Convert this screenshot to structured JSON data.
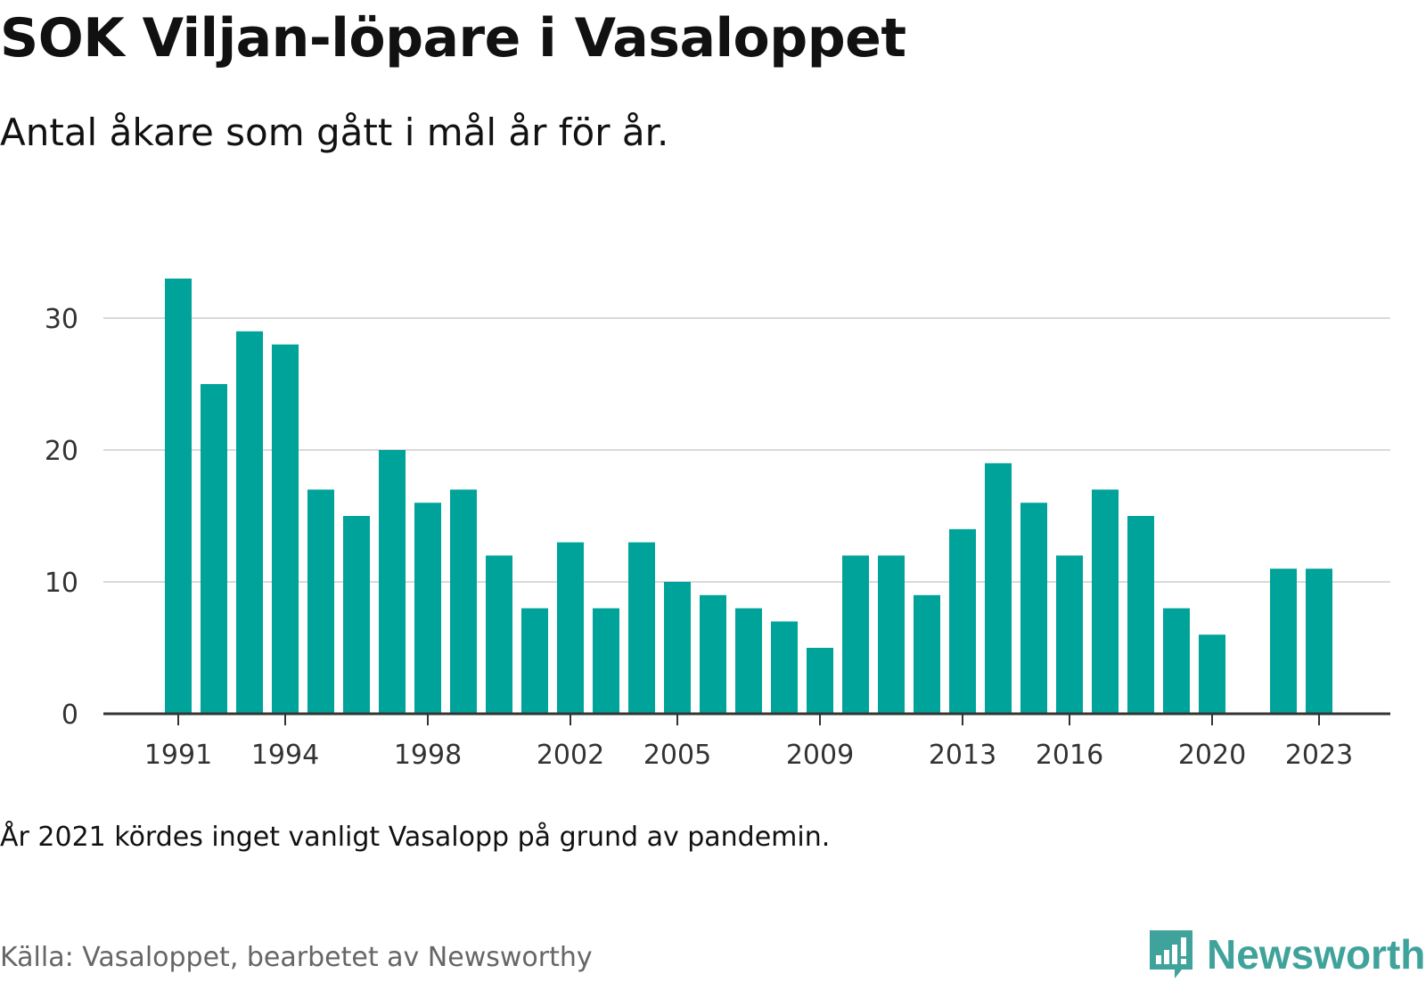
{
  "header": {
    "title": "SOK Viljan-löpare i Vasaloppet",
    "subtitle": "Antal åkare som gått i mål år för år."
  },
  "footer": {
    "note": "År 2021 kördes inget vanligt Vasalopp på grund av pandemin.",
    "source": "Källa: Vasaloppet, bearbetet av Newsworthy",
    "logo_text": "Newsworthy"
  },
  "colors": {
    "bar": "#00a39a",
    "grid": "#d9d9d9",
    "axis": "#333333",
    "brand": "#3fa39b"
  },
  "chart_data": {
    "type": "bar",
    "categories": [
      1991,
      1992,
      1993,
      1994,
      1995,
      1996,
      1997,
      1998,
      1999,
      2000,
      2001,
      2002,
      2003,
      2004,
      2005,
      2006,
      2007,
      2008,
      2009,
      2010,
      2011,
      2012,
      2013,
      2014,
      2015,
      2016,
      2017,
      2018,
      2019,
      2020,
      2021,
      2022,
      2023
    ],
    "values": [
      33,
      25,
      29,
      28,
      17,
      15,
      20,
      16,
      17,
      12,
      8,
      13,
      8,
      13,
      10,
      9,
      8,
      7,
      5,
      12,
      12,
      9,
      14,
      19,
      16,
      12,
      17,
      15,
      8,
      6,
      null,
      11,
      11
    ],
    "x_tick_labels": [
      "1991",
      "1994",
      "1998",
      "2002",
      "2005",
      "2009",
      "2013",
      "2016",
      "2020",
      "2023"
    ],
    "y_ticks": [
      0,
      10,
      20,
      30
    ],
    "ylim": [
      0,
      30
    ],
    "grid": true,
    "legend": false
  }
}
